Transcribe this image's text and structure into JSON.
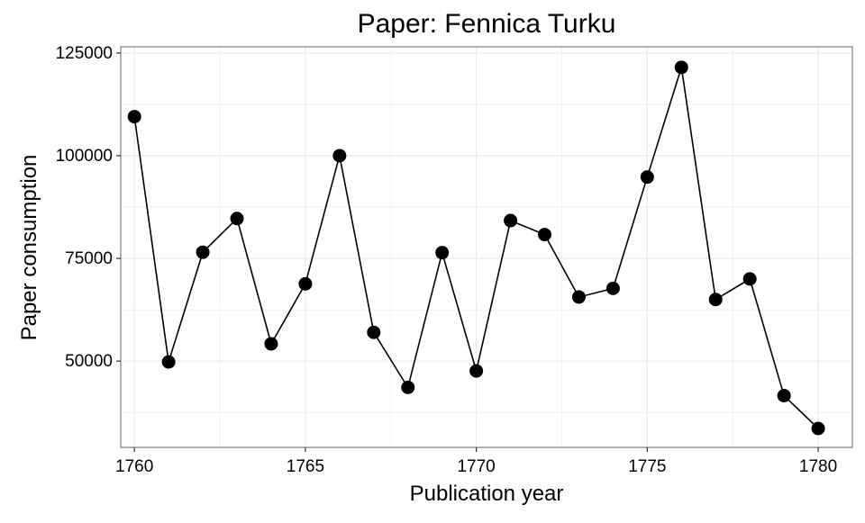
{
  "chart_data": {
    "type": "line",
    "title": "Paper: Fennica Turku",
    "xlabel": "Publication year",
    "ylabel": "Paper consumption",
    "xlim": [
      1759.6,
      1781
    ],
    "ylim": [
      29000,
      126500
    ],
    "x_ticks": [
      1760,
      1765,
      1770,
      1775,
      1780
    ],
    "y_ticks": [
      50000,
      75000,
      100000,
      125000
    ],
    "x_minor": [
      1762.5,
      1767.5,
      1772.5,
      1777.5
    ],
    "y_minor": [
      37500,
      62500,
      87500,
      112500
    ],
    "grid": true,
    "markers": true,
    "colors": {
      "line": "#000000",
      "marker": "#000000",
      "grid": "#ebebeb",
      "panel_border": "#7f7f7f"
    },
    "series": [
      {
        "x": [
          1760,
          1761,
          1762,
          1763,
          1764,
          1765,
          1766,
          1767,
          1768,
          1769,
          1770,
          1771,
          1772,
          1773,
          1774,
          1775,
          1776,
          1777,
          1778,
          1779,
          1780
        ],
        "values": [
          109500,
          49800,
          76500,
          84700,
          54200,
          68800,
          100000,
          57000,
          43600,
          76400,
          47600,
          84200,
          80800,
          65600,
          67700,
          94800,
          121500,
          65000,
          70000,
          41600,
          33600
        ]
      }
    ]
  }
}
